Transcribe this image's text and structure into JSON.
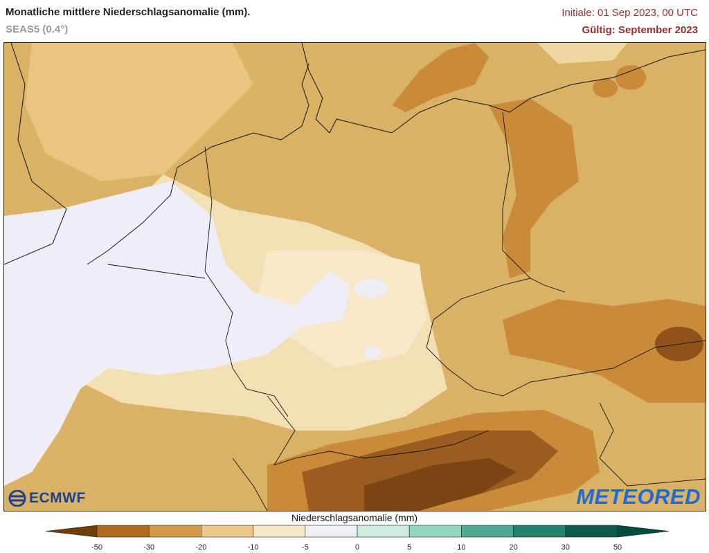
{
  "header": {
    "title": "Monatliche mittlere Niederschlagsanomalie (mm).",
    "subtitle": "SEAS5 (0.4°)",
    "initial": "Initiale: 01 Sep 2023, 00 UTC",
    "valid": "Gültig: September 2023"
  },
  "logos": {
    "left": "ECMWF",
    "right": "METEORED"
  },
  "legend": {
    "title": "Niederschlagsanomalie (mm)",
    "ticks": [
      "-50",
      "-30",
      "-20",
      "-10",
      "-5",
      "0",
      "5",
      "10",
      "20",
      "30",
      "50"
    ],
    "colors": [
      "#6e3f0b",
      "#b06a1e",
      "#d49a45",
      "#ecc98b",
      "#f5e6c4",
      "#f0eff8",
      "#ccebe1",
      "#8ed4bf",
      "#4fa892",
      "#22806c",
      "#0b5a4a",
      "#064b3d"
    ]
  },
  "map": {
    "region": "Central Europe",
    "palette": {
      "very_dry": "#6e3f0b",
      "dry_strong": "#b06a1e",
      "dry": "#d49a45",
      "slightly_dry": "#ecc98b",
      "near_zero_dry": "#f5e6c4",
      "neutral": "#f0eff8"
    }
  }
}
